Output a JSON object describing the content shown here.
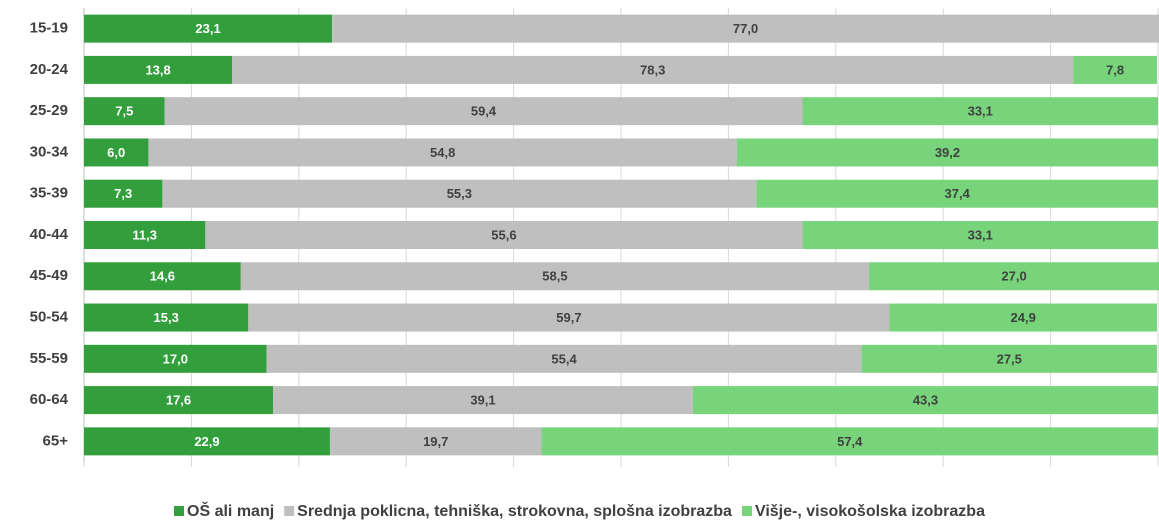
{
  "chart_data": {
    "type": "stacked-barh",
    "categories": [
      "15-19",
      "20-24",
      "25-29",
      "30-34",
      "35-39",
      "40-44",
      "45-49",
      "50-54",
      "55-59",
      "60-64",
      "65+"
    ],
    "series": [
      {
        "name": "OŠ ali manj",
        "color": "#339e3c",
        "values": [
          23.1,
          13.8,
          7.5,
          6.0,
          7.3,
          11.3,
          14.6,
          15.3,
          17.0,
          17.6,
          22.9
        ],
        "value_labels": [
          "23,1",
          "13,8",
          "7,5",
          "6,0",
          "7,3",
          "11,3",
          "14,6",
          "15,3",
          "17,0",
          "17,6",
          "22,9"
        ]
      },
      {
        "name": "Srednja poklicna, tehniška, strokovna, splošna izobrazba",
        "color": "#bfbfbf",
        "values": [
          77.0,
          78.3,
          59.4,
          54.8,
          55.3,
          55.6,
          58.5,
          59.7,
          55.4,
          39.1,
          19.7
        ],
        "value_labels": [
          "77,0",
          "78,3",
          "59,4",
          "54,8",
          "55,3",
          "55,6",
          "58,5",
          "59,7",
          "55,4",
          "39,1",
          "19,7"
        ]
      },
      {
        "name": "Višje-, visokošolska izobrazba",
        "color": "#77d47a",
        "values": [
          null,
          7.8,
          33.1,
          39.2,
          37.4,
          33.1,
          27.0,
          24.9,
          27.5,
          43.3,
          57.4
        ],
        "value_labels": [
          null,
          "7,8",
          "33,1",
          "39,2",
          "37,4",
          "33,1",
          "27,0",
          "24,9",
          "27,5",
          "43,3",
          "57,4"
        ]
      }
    ],
    "xlim": [
      0,
      100
    ],
    "xticks": [
      0,
      10,
      20,
      30,
      40,
      50,
      60,
      70,
      80,
      90,
      100
    ],
    "grid": true
  }
}
